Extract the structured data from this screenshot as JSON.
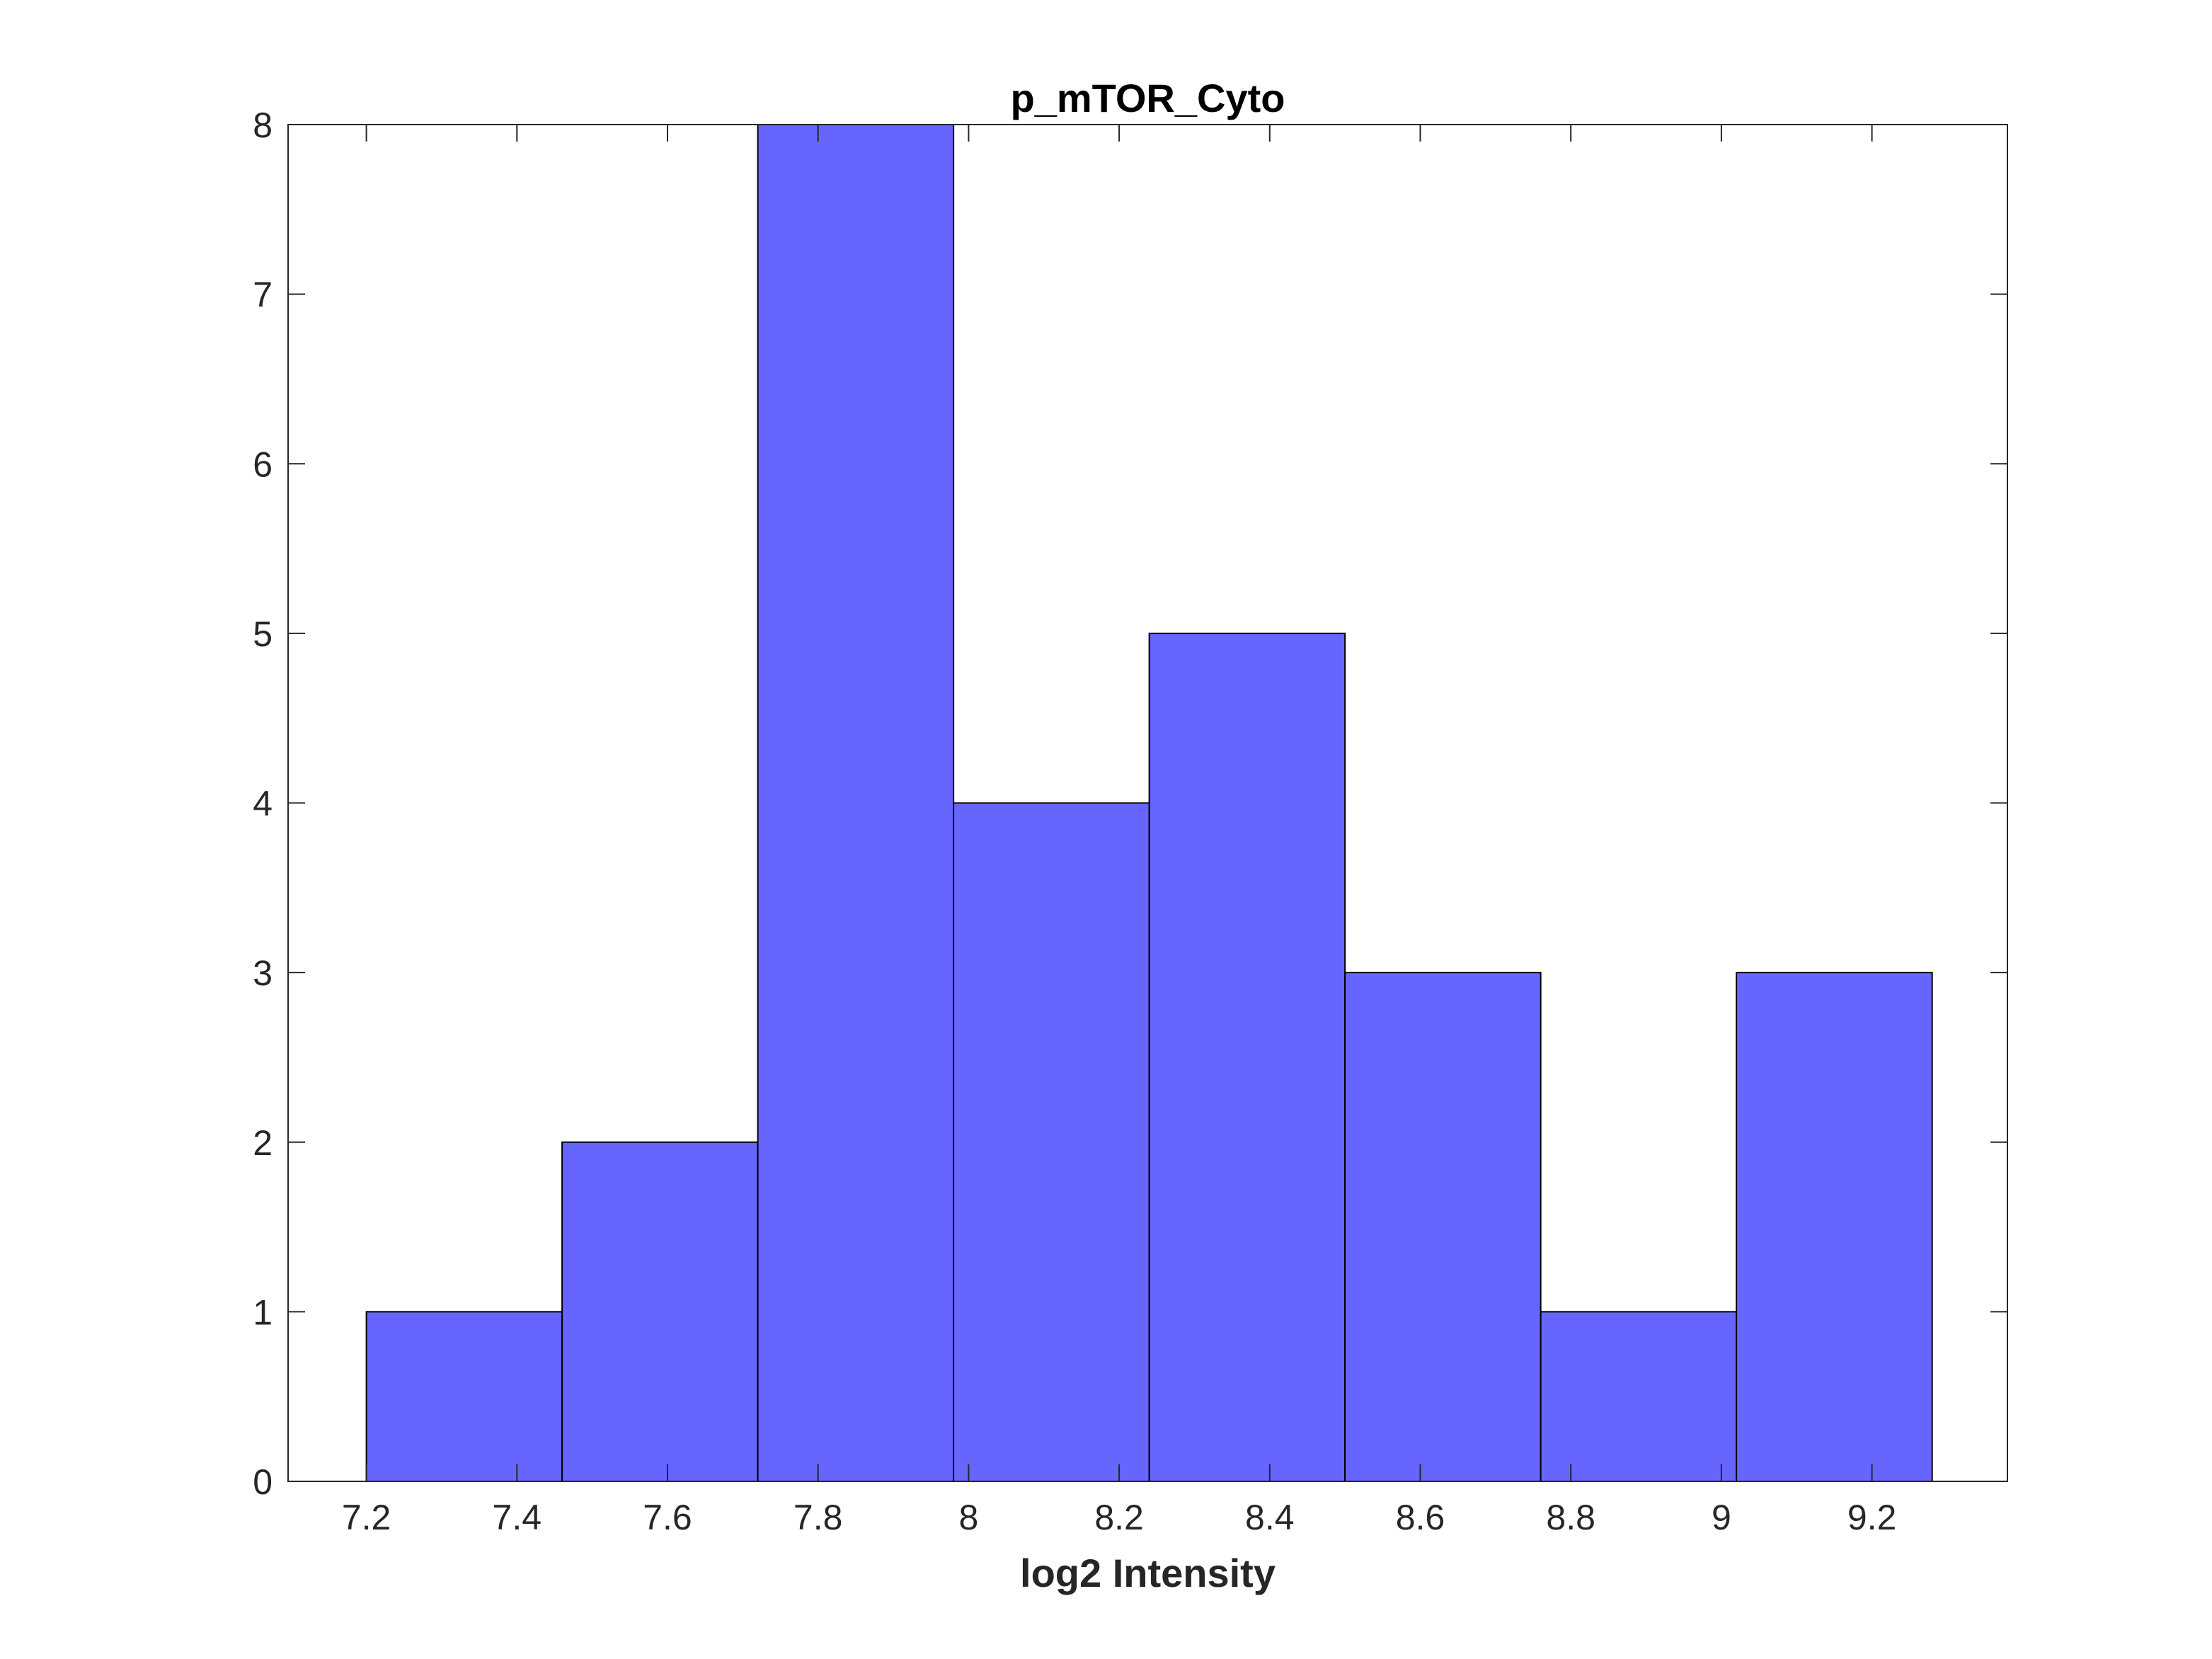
{
  "chart_data": {
    "type": "bar",
    "title": "p_mTOR_Cyto",
    "xlabel": "log2 Intensity",
    "ylabel": "",
    "xlim": [
      7.096,
      9.38
    ],
    "ylim": [
      0,
      8
    ],
    "xticks": [
      "7.2",
      "7.4",
      "7.6",
      "7.8",
      "8",
      "8.2",
      "8.4",
      "8.6",
      "8.8",
      "9",
      "9.2"
    ],
    "yticks": [
      "0",
      "1",
      "2",
      "3",
      "4",
      "5",
      "6",
      "7",
      "8"
    ],
    "bin_edges": [
      7.2,
      7.46,
      7.72,
      7.98,
      8.24,
      8.5,
      8.76,
      9.02,
      9.28
    ],
    "values": [
      1,
      2,
      8,
      4,
      5,
      3,
      1,
      3
    ],
    "grid": false,
    "bar_color": "#6666ff",
    "edge_color": "#000000"
  }
}
